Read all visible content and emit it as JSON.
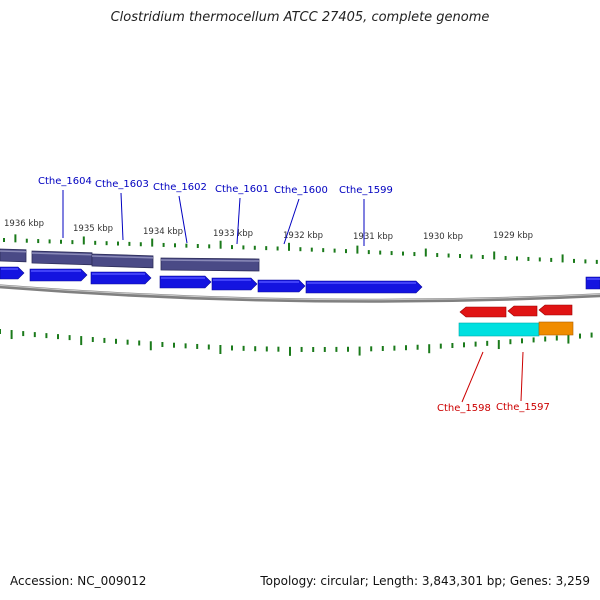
{
  "title": "Clostridium thermocellum ATCC 27405, complete genome",
  "footer": {
    "accession": "Accession: NC_009012",
    "summary": "Topology: circular; Length: 3,843,301 bp; Genes: 3,259"
  },
  "colors": {
    "forward_gene": "#1414e0",
    "forward_gene_top": "#5050ff",
    "forward_cds": "#4a4a86",
    "reverse_gene": "#e01414",
    "reverse_rna": "#00e0e0",
    "reverse_orange": "#f08c00",
    "backbone": "#808080",
    "tick": "#1a7a1a",
    "fwd_label": "#0000c0",
    "rev_label": "#cc0000"
  },
  "scale_labels": [
    "1936 kbp",
    "1935 kbp",
    "1934 kbp",
    "1933 kbp",
    "1932 kbp",
    "1931 kbp",
    "1930 kbp",
    "1929 kbp"
  ],
  "forward_labels": [
    "Cthe_1604",
    "Cthe_1603",
    "Cthe_1602",
    "Cthe_1601",
    "Cthe_1600",
    "Cthe_1599"
  ],
  "reverse_labels": [
    "Cthe_1598",
    "Cthe_1597"
  ]
}
